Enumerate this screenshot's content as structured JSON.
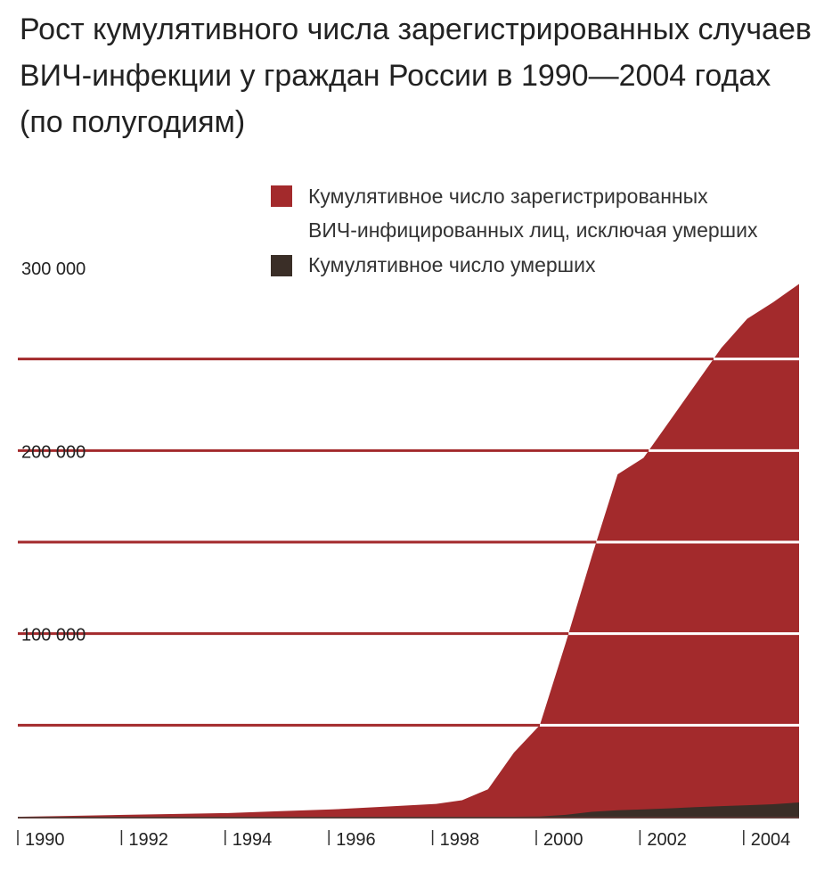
{
  "chart_data": {
    "type": "area",
    "title_lines": [
      "Рост кумулятивного числа зарегистрированных случаев",
      "ВИЧ-инфекции у граждан России в 1990—2004 годах",
      "(по полугодиям)"
    ],
    "legend": [
      {
        "label_lines": [
          "Кумулятивное число зарегистрированных",
          "ВИЧ-инфицированных лиц, исключая умерших"
        ],
        "color": "#a32a2c"
      },
      {
        "label_lines": [
          "Кумулятивное число умерших"
        ],
        "color": "#3a2e27"
      }
    ],
    "y_tick_labels": [
      {
        "value": 100000,
        "label": "100 000"
      },
      {
        "value": 200000,
        "label": "200 000"
      },
      {
        "value": 300000,
        "label": "300 000"
      }
    ],
    "gridlines": [
      50000,
      100000,
      150000,
      200000,
      250000
    ],
    "ylim": [
      0,
      300000
    ],
    "xlim": [
      1990,
      2005
    ],
    "x_tick_labels": [
      {
        "value": 1990,
        "label": "1990"
      },
      {
        "value": 1992,
        "label": "1992"
      },
      {
        "value": 1994,
        "label": "1994"
      },
      {
        "value": 1996,
        "label": "1996"
      },
      {
        "value": 1998,
        "label": "1998"
      },
      {
        "value": 2000,
        "label": "2000"
      },
      {
        "value": 2002,
        "label": "2002"
      },
      {
        "value": 2004,
        "label": "2004"
      }
    ],
    "x": [
      1990,
      1991,
      1992,
      1993,
      1994,
      1995,
      1996,
      1997,
      1998,
      1998.5,
      1999,
      1999.5,
      2000,
      2000.5,
      2001,
      2001.5,
      2002,
      2002.5,
      2003,
      2003.5,
      2004,
      2004.5,
      2005
    ],
    "series": [
      {
        "name": "Кумулятивное число зарегистрированных ВИЧ-инфицированных лиц, исключая умерших",
        "total_values": [
          0,
          500,
          1000,
          1500,
          2000,
          3000,
          4000,
          5500,
          7000,
          9000,
          15000,
          35000,
          50000,
          95000,
          142000,
          187000,
          196000,
          216000,
          236000,
          256000,
          272000,
          281000,
          291000
        ]
      },
      {
        "name": "Кумулятивное число умерших",
        "values": [
          0,
          0,
          0,
          0,
          0,
          0,
          0,
          0,
          0,
          0,
          0,
          0,
          100,
          1000,
          2700,
          3500,
          4000,
          4600,
          5200,
          5800,
          6300,
          6800,
          7800
        ]
      }
    ],
    "colors": {
      "main": "#a32a2c",
      "deaths": "#3a2e27",
      "gridline": "#ffffff",
      "baseline": "#5a3a36"
    }
  }
}
